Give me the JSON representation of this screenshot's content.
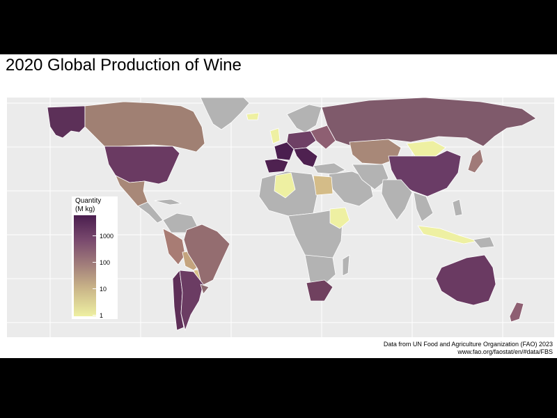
{
  "title": "2020 Global Production of Wine",
  "legend": {
    "title_line1": "Quantity",
    "title_line2": "(M kg)",
    "ticks": [
      "1000",
      "100",
      "10",
      "1"
    ],
    "colors": {
      "high": "#4a1e4f",
      "mid": "#a3807b",
      "low": "#eef0a2",
      "no_data": "#b3b3b3",
      "panel": "#ebebeb"
    }
  },
  "caption": {
    "line1": "Data from UN Food and Agriculture Organization (FAO) 2023",
    "line2": "www.fao.org/faostat/en/#data/FBS"
  },
  "chart_data": {
    "type": "choropleth",
    "scale": "log",
    "range_M_kg": [
      1,
      4000
    ],
    "regions": [
      {
        "name": "France",
        "level": 4000
      },
      {
        "name": "Italy",
        "level": 3500
      },
      {
        "name": "Spain",
        "level": 3000
      },
      {
        "name": "United States",
        "level": 2200
      },
      {
        "name": "China",
        "level": 1000
      },
      {
        "name": "Argentina",
        "level": 900
      },
      {
        "name": "Chile",
        "level": 1100
      },
      {
        "name": "Australia",
        "level": 1100
      },
      {
        "name": "South Africa",
        "level": 1000
      },
      {
        "name": "Portugal",
        "level": 600
      },
      {
        "name": "Germany",
        "level": 850
      },
      {
        "name": "Russia",
        "level": 450
      },
      {
        "name": "Brazil",
        "level": 200
      },
      {
        "name": "Canada",
        "level": 60
      },
      {
        "name": "Mexico",
        "level": 30
      },
      {
        "name": "New Zealand",
        "level": 300
      },
      {
        "name": "Japan",
        "level": 80
      },
      {
        "name": "Kazakhstan",
        "level": 80
      },
      {
        "name": "Mongolia",
        "level": 2
      },
      {
        "name": "Peru",
        "level": 40
      },
      {
        "name": "Bolivia",
        "level": 8
      },
      {
        "name": "Paraguay",
        "level": 4
      },
      {
        "name": "Uruguay",
        "level": 80
      },
      {
        "name": "Egypt",
        "level": 5
      },
      {
        "name": "Algeria",
        "level": 1
      },
      {
        "name": "Ethiopia",
        "level": 1
      },
      {
        "name": "Indonesia",
        "level": 1
      }
    ]
  }
}
